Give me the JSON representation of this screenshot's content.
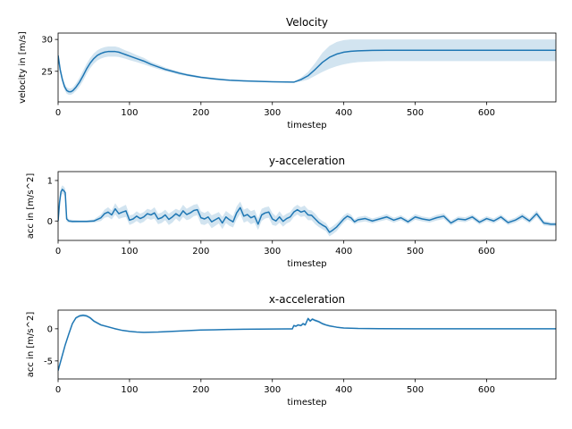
{
  "chart_data": [
    {
      "type": "line",
      "title": "Velocity",
      "xlabel": "timestep",
      "ylabel": "velocity in [m/s]",
      "xlim": [
        0,
        697
      ],
      "ylim": [
        20.2,
        31.0
      ],
      "xticks": [
        0,
        100,
        200,
        300,
        400,
        500,
        600
      ],
      "yticks": [
        25,
        30
      ],
      "grid": false,
      "line_color": "#1f77b4",
      "band_color": "#1f77b4",
      "series": [
        {
          "x": [
            0,
            3,
            6,
            9,
            12,
            15,
            18,
            21,
            25,
            30,
            35,
            40,
            45,
            50,
            55,
            60,
            65,
            70,
            75,
            80,
            85,
            90,
            95,
            100,
            110,
            120,
            130,
            140,
            150,
            160,
            170,
            180,
            190,
            200,
            220,
            240,
            260,
            280,
            300,
            320,
            330,
            340,
            350,
            360,
            370,
            380,
            390,
            400,
            410,
            420,
            440,
            460,
            480,
            500,
            550,
            600,
            650,
            697
          ],
          "y": [
            27.5,
            25.2,
            23.7,
            22.6,
            22.0,
            21.8,
            21.8,
            22.0,
            22.5,
            23.3,
            24.3,
            25.4,
            26.3,
            27.0,
            27.5,
            27.8,
            28.0,
            28.1,
            28.1,
            28.1,
            28.0,
            27.8,
            27.6,
            27.4,
            27.0,
            26.6,
            26.1,
            25.7,
            25.3,
            25.0,
            24.7,
            24.45,
            24.25,
            24.05,
            23.8,
            23.6,
            23.5,
            23.42,
            23.36,
            23.32,
            23.3,
            23.7,
            24.3,
            25.3,
            26.4,
            27.2,
            27.7,
            28.0,
            28.15,
            28.22,
            28.28,
            28.3,
            28.3,
            28.3,
            28.3,
            28.3,
            28.3,
            28.3
          ],
          "lower": [
            27.0,
            24.7,
            23.2,
            22.1,
            21.5,
            21.3,
            21.3,
            21.5,
            21.9,
            22.6,
            23.5,
            24.6,
            25.5,
            26.2,
            26.7,
            27.0,
            27.2,
            27.3,
            27.3,
            27.3,
            27.25,
            27.1,
            26.95,
            26.75,
            26.45,
            26.1,
            25.7,
            25.35,
            25.0,
            24.75,
            24.45,
            24.25,
            24.05,
            23.9,
            23.65,
            23.5,
            23.4,
            23.34,
            23.3,
            23.27,
            23.25,
            23.4,
            23.7,
            24.3,
            24.9,
            25.4,
            25.8,
            26.1,
            26.3,
            26.45,
            26.55,
            26.6,
            26.6,
            26.6,
            26.6,
            26.6,
            26.6,
            26.6
          ],
          "upper": [
            28.0,
            25.7,
            24.2,
            23.1,
            22.5,
            22.3,
            22.3,
            22.5,
            23.1,
            24.0,
            25.1,
            26.2,
            27.1,
            27.8,
            28.3,
            28.6,
            28.8,
            28.9,
            28.9,
            28.9,
            28.75,
            28.5,
            28.25,
            28.05,
            27.55,
            27.1,
            26.5,
            26.05,
            25.6,
            25.25,
            24.95,
            24.65,
            24.45,
            24.2,
            23.95,
            23.7,
            23.6,
            23.5,
            23.42,
            23.37,
            23.35,
            24.0,
            24.9,
            26.3,
            27.9,
            29.0,
            29.6,
            29.9,
            30.0,
            30.0,
            30.0,
            30.0,
            30.0,
            30.0,
            30.0,
            30.0,
            30.0,
            30.0
          ]
        }
      ]
    },
    {
      "type": "line",
      "title": "y-acceleration",
      "xlabel": "timestep",
      "ylabel": "acc in [m/s^2]",
      "xlim": [
        0,
        697
      ],
      "ylim": [
        -0.48,
        1.22
      ],
      "xticks": [
        0,
        100,
        200,
        300,
        400,
        500,
        600
      ],
      "yticks": [
        0,
        1
      ],
      "grid": false,
      "line_color": "#1f77b4",
      "band_color": "#1f77b4",
      "series": [
        {
          "x": [
            0,
            2,
            4,
            6,
            8,
            10,
            12,
            15,
            20,
            30,
            40,
            50,
            60,
            65,
            70,
            75,
            80,
            85,
            90,
            95,
            100,
            105,
            110,
            115,
            120,
            125,
            130,
            135,
            140,
            145,
            150,
            155,
            160,
            165,
            170,
            175,
            180,
            185,
            190,
            195,
            200,
            205,
            210,
            215,
            220,
            225,
            230,
            235,
            240,
            245,
            250,
            255,
            260,
            265,
            270,
            275,
            280,
            285,
            290,
            295,
            300,
            305,
            310,
            315,
            320,
            325,
            330,
            335,
            340,
            345,
            350,
            355,
            360,
            365,
            370,
            375,
            380,
            385,
            390,
            395,
            400,
            405,
            410,
            415,
            420,
            430,
            440,
            450,
            460,
            470,
            480,
            490,
            500,
            510,
            520,
            530,
            540,
            550,
            560,
            570,
            580,
            590,
            600,
            610,
            620,
            630,
            640,
            650,
            660,
            670,
            680,
            690,
            697
          ],
          "y": [
            0.0,
            0.45,
            0.72,
            0.78,
            0.75,
            0.7,
            0.05,
            0.0,
            -0.01,
            -0.01,
            -0.01,
            0.0,
            0.08,
            0.18,
            0.22,
            0.15,
            0.3,
            0.18,
            0.22,
            0.25,
            0.02,
            0.05,
            0.12,
            0.06,
            0.1,
            0.18,
            0.15,
            0.2,
            0.05,
            0.08,
            0.15,
            0.04,
            0.1,
            0.18,
            0.12,
            0.25,
            0.16,
            0.2,
            0.26,
            0.28,
            0.08,
            0.05,
            0.1,
            -0.02,
            0.03,
            0.08,
            -0.05,
            0.1,
            0.03,
            -0.02,
            0.2,
            0.33,
            0.12,
            0.16,
            0.08,
            0.12,
            -0.08,
            0.15,
            0.2,
            0.22,
            0.05,
            0.0,
            0.1,
            -0.01,
            0.06,
            0.1,
            0.22,
            0.28,
            0.22,
            0.25,
            0.15,
            0.14,
            0.05,
            -0.04,
            -0.1,
            -0.15,
            -0.28,
            -0.22,
            -0.15,
            -0.05,
            0.05,
            0.12,
            0.08,
            -0.02,
            0.03,
            0.06,
            0.0,
            0.05,
            0.1,
            0.02,
            0.08,
            -0.02,
            0.1,
            0.05,
            0.02,
            0.08,
            0.12,
            -0.05,
            0.05,
            0.03,
            0.1,
            -0.03,
            0.06,
            0.0,
            0.1,
            -0.04,
            0.02,
            0.12,
            0.0,
            0.18,
            -0.05,
            -0.08,
            -0.08
          ],
          "lower": [
            -0.08,
            0.35,
            0.62,
            0.68,
            0.65,
            0.6,
            -0.02,
            -0.04,
            -0.05,
            -0.04,
            -0.04,
            -0.04,
            0.0,
            0.08,
            0.1,
            0.04,
            0.16,
            0.05,
            0.08,
            0.1,
            -0.1,
            -0.06,
            0.0,
            -0.06,
            -0.02,
            0.06,
            0.03,
            0.06,
            -0.08,
            -0.05,
            0.02,
            -0.1,
            -0.04,
            0.06,
            -0.02,
            0.1,
            0.02,
            0.05,
            0.12,
            0.14,
            -0.08,
            -0.1,
            -0.05,
            -0.18,
            -0.12,
            -0.06,
            -0.2,
            -0.05,
            -0.12,
            -0.16,
            0.04,
            0.18,
            -0.04,
            0.0,
            -0.08,
            -0.04,
            -0.22,
            0.0,
            0.06,
            0.08,
            -0.1,
            -0.12,
            -0.04,
            -0.14,
            -0.06,
            -0.02,
            0.1,
            0.16,
            0.1,
            0.12,
            0.02,
            0.02,
            -0.08,
            -0.15,
            -0.2,
            -0.25,
            -0.38,
            -0.32,
            -0.25,
            -0.14,
            -0.04,
            0.04,
            0.0,
            -0.08,
            -0.04,
            -0.01,
            -0.06,
            -0.01,
            0.03,
            -0.04,
            0.02,
            -0.08,
            0.03,
            -0.01,
            -0.04,
            0.01,
            0.05,
            -0.11,
            -0.01,
            -0.03,
            0.04,
            -0.09,
            0.0,
            -0.06,
            0.04,
            -0.1,
            -0.04,
            0.05,
            -0.06,
            0.1,
            -0.11,
            -0.13,
            -0.13
          ],
          "upper": [
            0.08,
            0.55,
            0.82,
            0.88,
            0.85,
            0.8,
            0.12,
            0.04,
            0.03,
            0.02,
            0.02,
            0.04,
            0.16,
            0.28,
            0.34,
            0.26,
            0.44,
            0.31,
            0.36,
            0.4,
            0.14,
            0.16,
            0.24,
            0.18,
            0.22,
            0.3,
            0.27,
            0.34,
            0.18,
            0.21,
            0.28,
            0.18,
            0.24,
            0.3,
            0.26,
            0.4,
            0.3,
            0.35,
            0.4,
            0.42,
            0.24,
            0.2,
            0.25,
            0.14,
            0.18,
            0.22,
            0.1,
            0.25,
            0.18,
            0.12,
            0.36,
            0.48,
            0.28,
            0.32,
            0.24,
            0.28,
            0.06,
            0.3,
            0.34,
            0.36,
            0.2,
            0.12,
            0.24,
            0.12,
            0.18,
            0.22,
            0.34,
            0.4,
            0.34,
            0.38,
            0.28,
            0.26,
            0.18,
            0.07,
            0.0,
            -0.05,
            -0.18,
            -0.12,
            -0.05,
            0.04,
            0.14,
            0.2,
            0.16,
            0.04,
            0.1,
            0.13,
            0.06,
            0.11,
            0.17,
            0.08,
            0.14,
            0.04,
            0.17,
            0.11,
            0.08,
            0.15,
            0.19,
            0.01,
            0.11,
            0.09,
            0.16,
            0.03,
            0.12,
            0.06,
            0.16,
            0.02,
            0.08,
            0.19,
            0.06,
            0.26,
            0.01,
            -0.03,
            -0.03
          ]
        }
      ]
    },
    {
      "type": "line",
      "title": "x-acceleration",
      "xlabel": "timestep",
      "ylabel": "acc in [m/s^2]",
      "xlim": [
        0,
        697
      ],
      "ylim": [
        -7.8,
        2.9
      ],
      "xticks": [
        0,
        100,
        200,
        300,
        400,
        500,
        600
      ],
      "yticks": [
        -5,
        0
      ],
      "grid": false,
      "line_color": "#1f77b4",
      "band_color": "#1f77b4",
      "series": [
        {
          "x": [
            0,
            5,
            10,
            15,
            20,
            25,
            30,
            35,
            40,
            45,
            50,
            55,
            60,
            70,
            80,
            90,
            100,
            110,
            120,
            140,
            160,
            180,
            200,
            220,
            240,
            260,
            280,
            300,
            320,
            328,
            330,
            333,
            336,
            340,
            343,
            346,
            350,
            353,
            356,
            360,
            365,
            370,
            375,
            380,
            390,
            400,
            420,
            450,
            500,
            550,
            600,
            650,
            697
          ],
          "y": [
            -6.5,
            -4.5,
            -2.5,
            -0.8,
            0.8,
            1.7,
            2.0,
            2.1,
            2.0,
            1.7,
            1.2,
            0.9,
            0.6,
            0.3,
            0.0,
            -0.25,
            -0.4,
            -0.5,
            -0.55,
            -0.5,
            -0.4,
            -0.3,
            -0.2,
            -0.15,
            -0.1,
            -0.07,
            -0.05,
            -0.03,
            -0.02,
            -0.02,
            0.5,
            0.4,
            0.6,
            0.5,
            0.8,
            0.6,
            1.6,
            1.2,
            1.5,
            1.3,
            1.1,
            0.8,
            0.6,
            0.45,
            0.25,
            0.12,
            0.05,
            0.02,
            0.0,
            0.0,
            0.0,
            0.0,
            0.0
          ],
          "lower": [
            -6.7,
            -4.7,
            -2.7,
            -1.0,
            0.6,
            1.5,
            1.8,
            1.9,
            1.8,
            1.5,
            1.0,
            0.7,
            0.45,
            0.18,
            -0.1,
            -0.33,
            -0.47,
            -0.57,
            -0.61,
            -0.55,
            -0.44,
            -0.34,
            -0.23,
            -0.18,
            -0.13,
            -0.1,
            -0.08,
            -0.05,
            -0.04,
            -0.04,
            0.35,
            0.25,
            0.45,
            0.35,
            0.6,
            0.45,
            1.4,
            1.0,
            1.3,
            1.1,
            0.9,
            0.62,
            0.45,
            0.32,
            0.15,
            0.05,
            0.0,
            -0.02,
            -0.03,
            -0.03,
            -0.03,
            -0.03,
            -0.03
          ],
          "upper": [
            -6.3,
            -4.3,
            -2.3,
            -0.6,
            1.0,
            1.9,
            2.2,
            2.3,
            2.2,
            1.9,
            1.4,
            1.1,
            0.75,
            0.42,
            0.1,
            -0.17,
            -0.33,
            -0.43,
            -0.49,
            -0.45,
            -0.36,
            -0.26,
            -0.17,
            -0.12,
            -0.07,
            -0.04,
            -0.02,
            -0.01,
            0.0,
            0.0,
            0.65,
            0.55,
            0.75,
            0.65,
            1.0,
            0.75,
            1.8,
            1.4,
            1.7,
            1.5,
            1.3,
            0.98,
            0.75,
            0.58,
            0.35,
            0.19,
            0.1,
            0.06,
            0.03,
            0.03,
            0.03,
            0.03,
            0.03
          ]
        }
      ]
    }
  ]
}
